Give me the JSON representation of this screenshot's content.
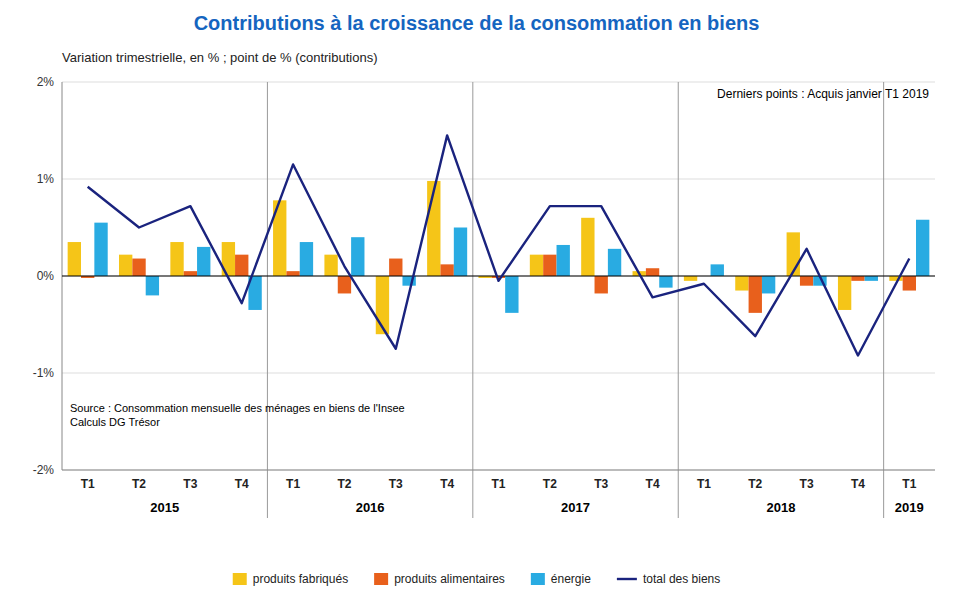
{
  "chart_data": {
    "type": "bar",
    "title": "Contributions à la croissance de la consommation en biens",
    "subtitle": "Variation trimestrielle, en % ; point de % (contributions)",
    "annotation": "Derniers points : Acquis janvier T1 2019",
    "source": "Source :  Consommation mensuelle des ménages en biens de l'Insee\nCalculs DG Trésor",
    "categories": [
      "T1",
      "T2",
      "T3",
      "T4",
      "T1",
      "T2",
      "T3",
      "T4",
      "T1",
      "T2",
      "T3",
      "T4",
      "T1",
      "T2",
      "T3",
      "T4",
      "T1"
    ],
    "category_groups": [
      {
        "name": "2015",
        "size": 4
      },
      {
        "name": "2016",
        "size": 4
      },
      {
        "name": "2017",
        "size": 4
      },
      {
        "name": "2018",
        "size": 4
      },
      {
        "name": "2019",
        "size": 1
      }
    ],
    "series": [
      {
        "name": "produits fabriqués",
        "type": "bar",
        "color": "#F5C518",
        "values": [
          0.35,
          0.22,
          0.35,
          0.35,
          0.78,
          0.22,
          -0.6,
          0.98,
          -0.02,
          0.22,
          0.6,
          0.05,
          -0.05,
          -0.15,
          0.45,
          -0.35,
          -0.05
        ]
      },
      {
        "name": "produits alimentaires",
        "type": "bar",
        "color": "#E8601C",
        "values": [
          -0.02,
          0.18,
          0.05,
          0.22,
          0.05,
          -0.18,
          0.18,
          0.12,
          -0.02,
          0.22,
          -0.18,
          0.08,
          0.0,
          -0.38,
          -0.1,
          -0.05,
          -0.15
        ]
      },
      {
        "name": "énergie",
        "type": "bar",
        "color": "#29ABE2",
        "values": [
          0.55,
          -0.2,
          0.3,
          -0.35,
          0.35,
          0.4,
          -0.1,
          0.5,
          -0.38,
          0.32,
          0.28,
          -0.12,
          0.12,
          -0.18,
          -0.1,
          -0.05,
          0.58
        ]
      },
      {
        "name": "total des biens",
        "type": "line",
        "color": "#1A237E",
        "values": [
          0.92,
          0.5,
          0.72,
          -0.28,
          1.15,
          0.1,
          -0.75,
          1.45,
          -0.05,
          0.72,
          0.72,
          -0.22,
          -0.08,
          -0.62,
          0.28,
          -0.82,
          0.18
        ]
      }
    ],
    "ylim": [
      -2.0,
      2.0
    ],
    "yticks": [
      {
        "value": -2.0,
        "label": "-2%"
      },
      {
        "value": -1.0,
        "label": "-1%"
      },
      {
        "value": 0.0,
        "label": "0%"
      },
      {
        "value": 1.0,
        "label": "1%"
      },
      {
        "value": 2.0,
        "label": "2%"
      }
    ],
    "grid": true,
    "legend": "bottom"
  }
}
